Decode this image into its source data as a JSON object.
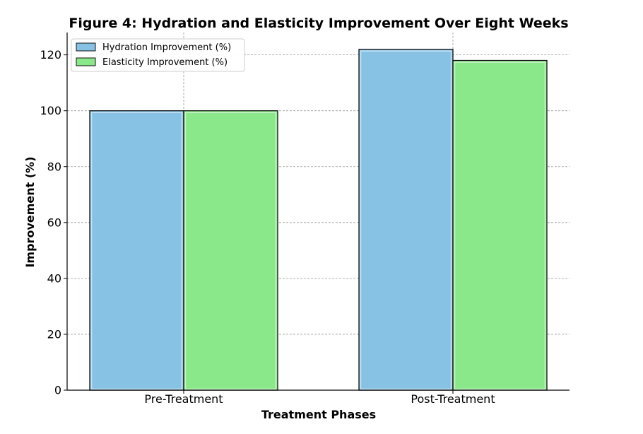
{
  "chart_data": {
    "type": "bar",
    "title": "Figure 4: Hydration and Elasticity Improvement Over Eight Weeks",
    "xlabel": "Treatment Phases",
    "ylabel": "Improvement (%)",
    "categories": [
      "Pre-Treatment",
      "Post-Treatment"
    ],
    "series": [
      {
        "name": "Hydration Improvement (%)",
        "values": [
          100,
          122
        ],
        "color": "#87c1e3"
      },
      {
        "name": "Elasticity Improvement (%)",
        "values": [
          100,
          118
        ],
        "color": "#8ae78a"
      }
    ],
    "ylim": [
      0,
      128
    ],
    "yticks": [
      0,
      20,
      40,
      60,
      80,
      100,
      120
    ],
    "grid": true,
    "legend_position": "top-left"
  }
}
